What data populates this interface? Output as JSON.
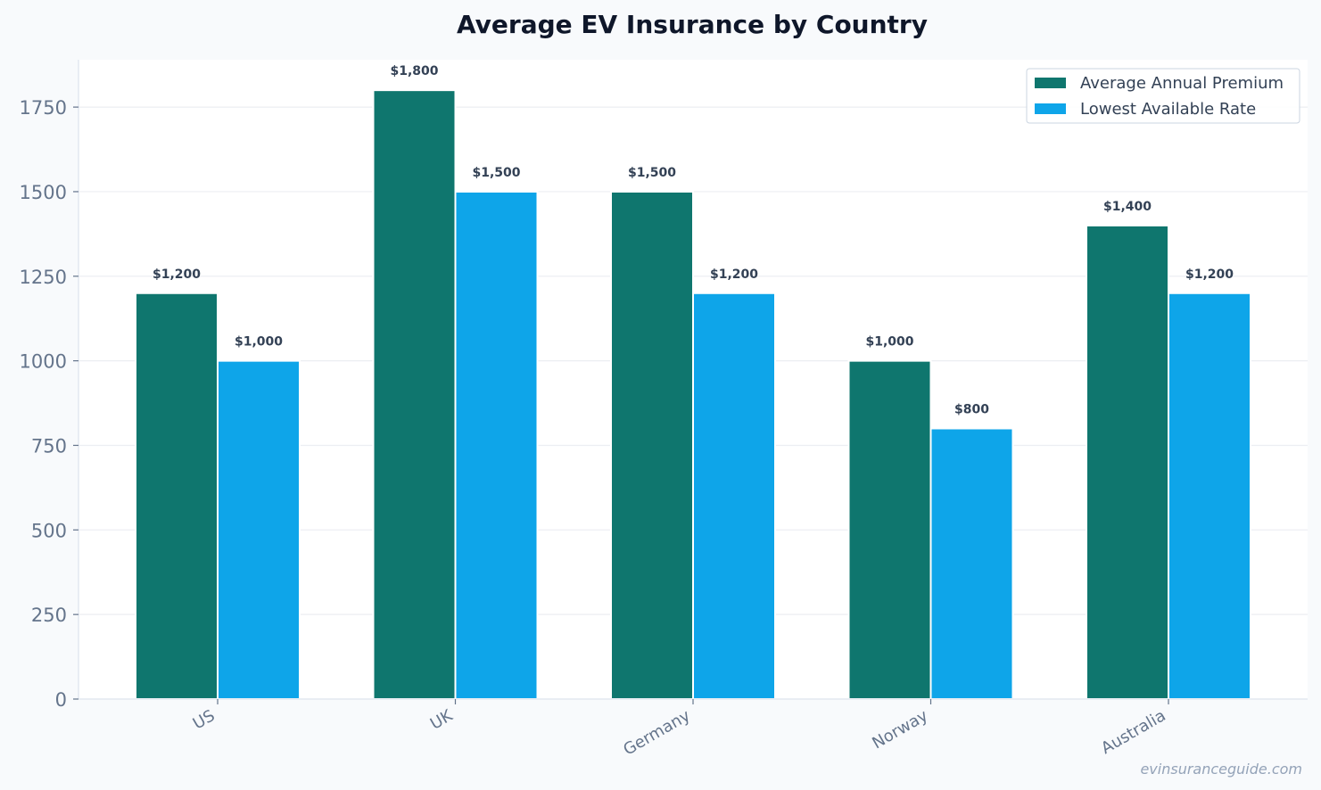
{
  "colors": {
    "background": "#f8fafc",
    "plot_background": "#ffffff",
    "series_premium": "#0f766e",
    "series_lowest": "#0ea5e9"
  },
  "watermark": "evinsuranceguide.com",
  "chart_data": {
    "type": "bar",
    "title": "Average EV Insurance by Country",
    "xlabel": "",
    "ylabel": "",
    "categories": [
      "US",
      "UK",
      "Germany",
      "Norway",
      "Australia"
    ],
    "series": [
      {
        "name": "Average Annual Premium",
        "color": "#0f766e",
        "values": [
          1200,
          1800,
          1500,
          1000,
          1400
        ],
        "labels": [
          "$1,200",
          "$1,800",
          "$1,500",
          "$1,000",
          "$1,400"
        ]
      },
      {
        "name": "Lowest Available Rate",
        "color": "#0ea5e9",
        "values": [
          1000,
          1500,
          1200,
          800,
          1200
        ],
        "labels": [
          "$1,000",
          "$1,500",
          "$1,200",
          "$800",
          "$1,200"
        ]
      }
    ],
    "ylim": [
      0,
      1890
    ],
    "yticks": [
      0,
      250,
      500,
      750,
      1000,
      1250,
      1500,
      1750
    ],
    "grid": true,
    "legend_position": "top-right",
    "x_tick_rotation": -30
  }
}
